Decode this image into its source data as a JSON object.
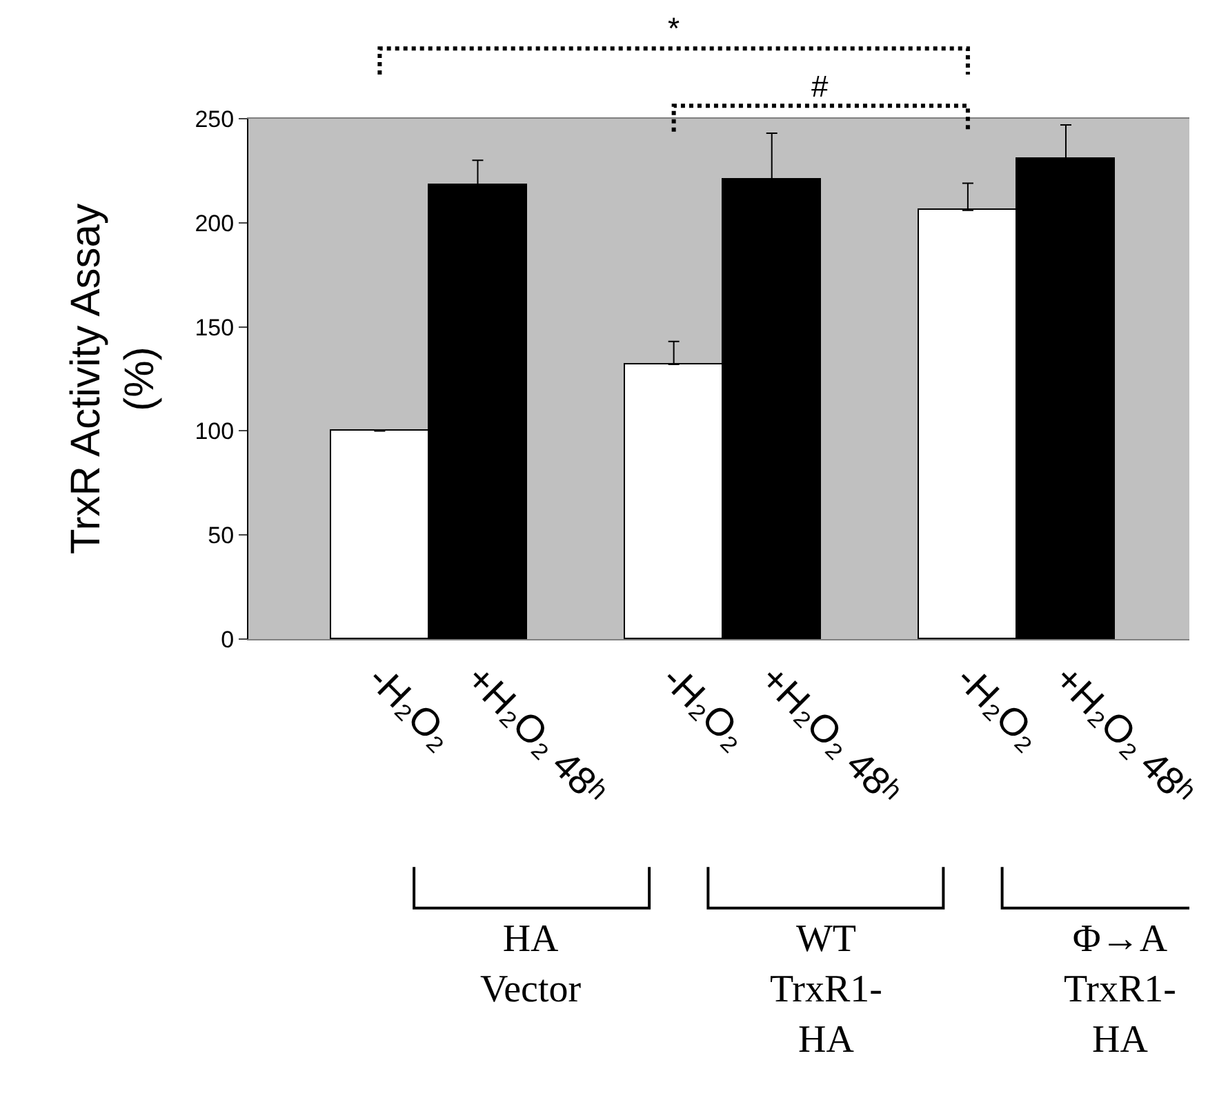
{
  "chart_data": {
    "type": "bar",
    "ylabel": "TrxR Activity Assay\n(%)",
    "categories": [
      "-H₂O₂",
      "+H₂O₂ 48ʰ",
      "-H₂O₂",
      "+H₂O₂ 48ʰ",
      "-H₂O₂",
      "+H₂O₂ 48ʰ"
    ],
    "values": [
      100,
      218,
      132,
      221,
      206,
      231
    ],
    "colors": [
      "#ffffff",
      "#000000",
      "#ffffff",
      "#000000",
      "#ffffff",
      "#000000"
    ],
    "errors": [
      null,
      [
        218,
        230
      ],
      [
        132,
        143
      ],
      [
        221,
        243
      ],
      [
        206,
        219
      ],
      [
        231,
        247
      ]
    ],
    "ylim": [
      0,
      250
    ],
    "yticks": [
      0,
      50,
      100,
      150,
      200,
      250
    ],
    "grid": false,
    "annotations": [
      "HA\nVector",
      "WT\nTrxR1-\nHA",
      "Φ→A\nTrxR1-\nHA",
      "*",
      "#"
    ]
  }
}
